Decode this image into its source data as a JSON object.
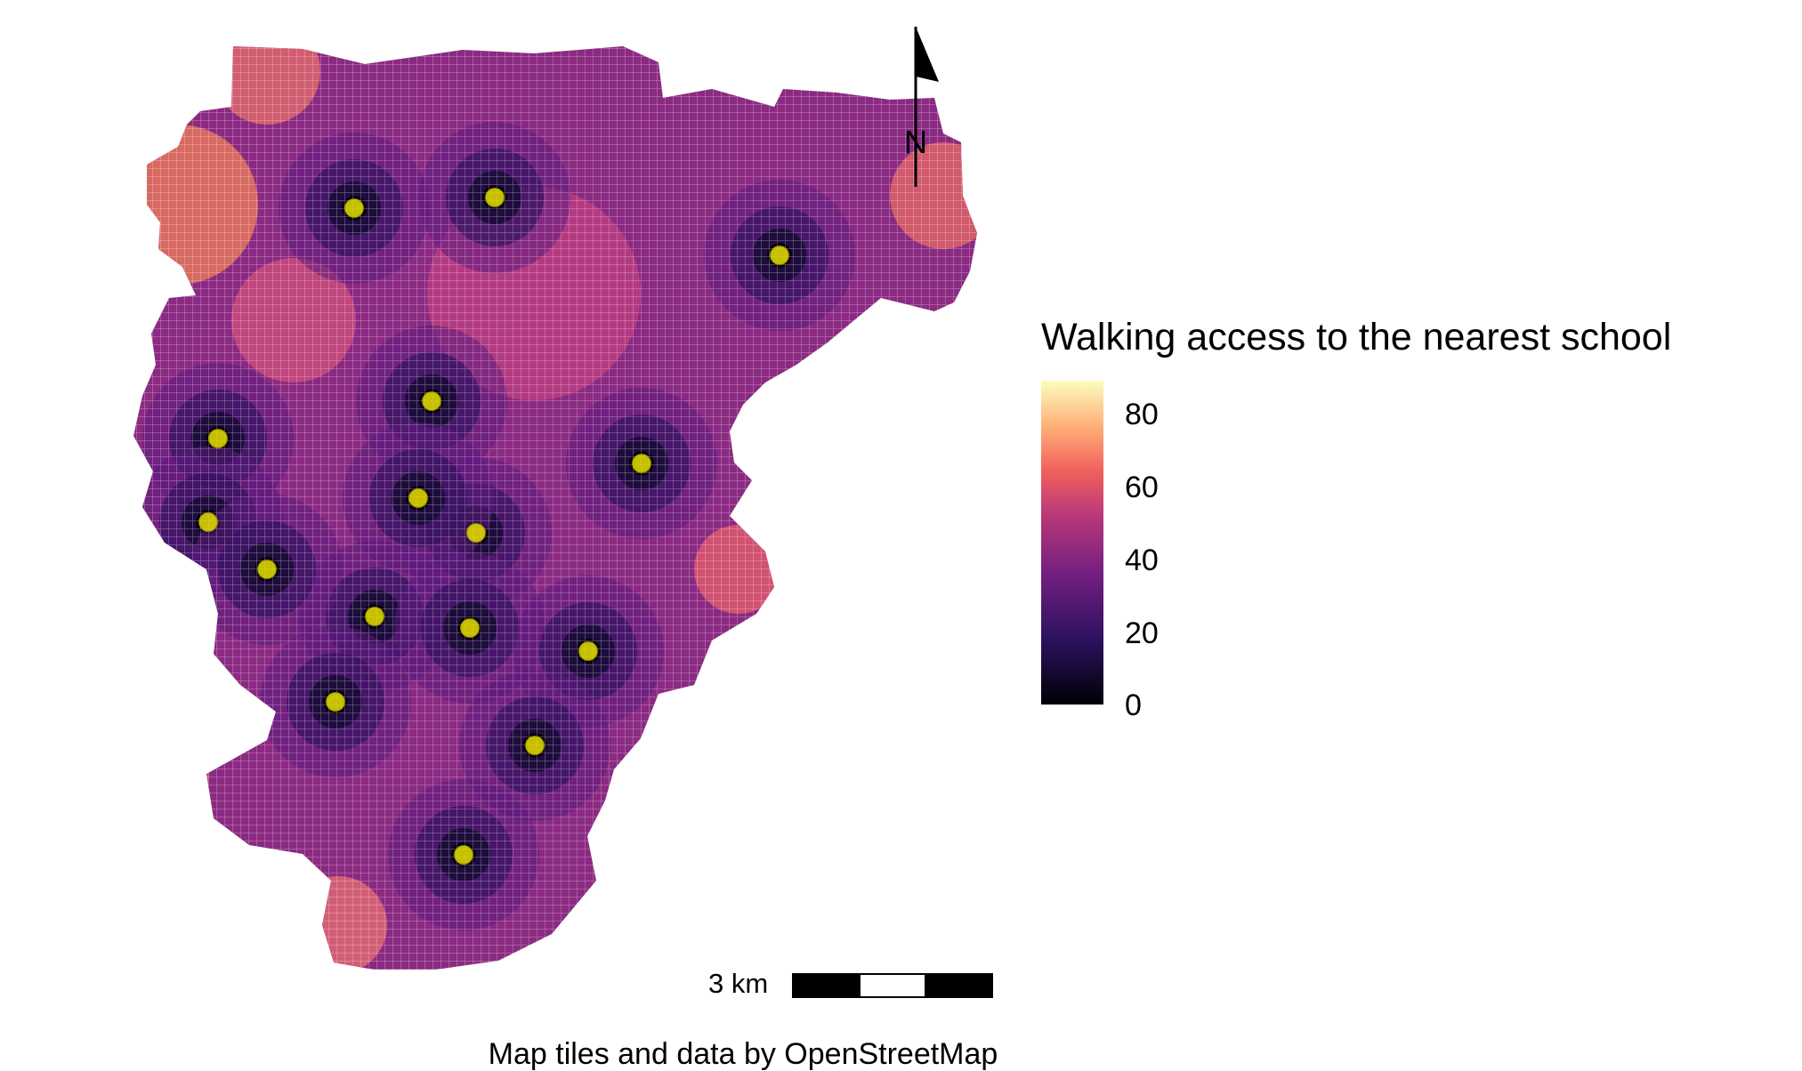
{
  "map": {
    "legend": {
      "title": "Walking access to the nearest school",
      "ticks": [
        {
          "value": 80,
          "label": "80"
        },
        {
          "value": 60,
          "label": "60"
        },
        {
          "value": 40,
          "label": "40"
        },
        {
          "value": 20,
          "label": "20"
        },
        {
          "value": 0,
          "label": "0"
        }
      ],
      "min": 0,
      "max": 90
    },
    "north_arrow": {
      "label": "N"
    },
    "scale_bar": {
      "label": "3 km"
    },
    "caption": "Map tiles and data by OpenStreetMap",
    "colors": {
      "school_point": "#e8e000",
      "grid_line": "#ffffff",
      "palette": [
        "#000004",
        "#2c115f",
        "#721f81",
        "#b73779",
        "#f1605d",
        "#feb078",
        "#fcfdbf"
      ]
    },
    "schools_count": 16
  }
}
